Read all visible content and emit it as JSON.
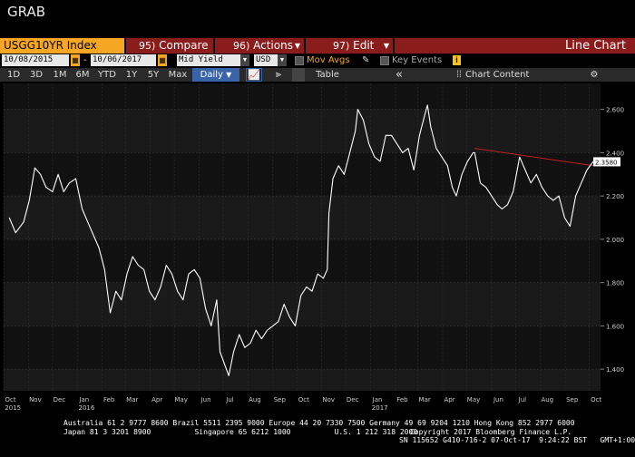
{
  "window": {
    "title": "GRAB"
  },
  "toolbar": {
    "ticker": "USGG10YR Index",
    "compare": {
      "num": "95)",
      "label": "Compare"
    },
    "actions": {
      "num": "96)",
      "label": "Actions"
    },
    "edit": {
      "num": "97)",
      "label": "Edit"
    },
    "view": "Line Chart"
  },
  "params": {
    "start_date": "10/08/2015",
    "dash": "-",
    "end_date": "10/06/2017",
    "field": "Mid Yield",
    "currency": "USD",
    "mov_avgs": "Mov Avgs",
    "key_events": "Key Events",
    "info": "i"
  },
  "timebar": {
    "ranges": [
      "1D",
      "3D",
      "1M",
      "6M",
      "YTD",
      "1Y",
      "5Y",
      "Max"
    ],
    "frequency": "Daily",
    "table": "Table",
    "collapse": "«",
    "chart_content": "Chart Content",
    "settings": "⚙"
  },
  "chart_data": {
    "type": "line",
    "title": "",
    "xlabel": "",
    "ylabel": "",
    "x_ticks": [
      "Oct",
      "Nov",
      "Dec",
      "Jan",
      "Feb",
      "Mar",
      "Apr",
      "May",
      "Jun",
      "Jul",
      "Aug",
      "Sep",
      "Oct",
      "Nov",
      "Dec",
      "Jan",
      "Feb",
      "Mar",
      "Apr",
      "May",
      "Jun",
      "Jul",
      "Aug",
      "Sep",
      "Oct"
    ],
    "x_year_labels": [
      "2015",
      "2016",
      "2017"
    ],
    "y_ticks": [
      "2.600",
      "2.400",
      "2.200",
      "2.000",
      "1.800",
      "1.600",
      "1.400"
    ],
    "ylim": [
      1.3,
      2.72
    ],
    "last_value_label": "2.3580",
    "grid": true,
    "series": [
      {
        "color": "#ffffff",
        "x": [
          "2015-10-08",
          "2015-10-16",
          "2015-10-26",
          "2015-11-02",
          "2015-11-09",
          "2015-11-16",
          "2015-11-23",
          "2015-12-01",
          "2015-12-08",
          "2015-12-15",
          "2015-12-22",
          "2015-12-30",
          "2016-01-07",
          "2016-01-14",
          "2016-01-21",
          "2016-01-28",
          "2016-02-04",
          "2016-02-11",
          "2016-02-18",
          "2016-02-25",
          "2016-03-03",
          "2016-03-10",
          "2016-03-17",
          "2016-03-24",
          "2016-03-31",
          "2016-04-07",
          "2016-04-14",
          "2016-04-21",
          "2016-04-28",
          "2016-05-05",
          "2016-05-12",
          "2016-05-19",
          "2016-05-26",
          "2016-06-02",
          "2016-06-09",
          "2016-06-16",
          "2016-06-23",
          "2016-06-27",
          "2016-07-05",
          "2016-07-08",
          "2016-07-14",
          "2016-07-21",
          "2016-07-28",
          "2016-08-04",
          "2016-08-11",
          "2016-08-18",
          "2016-08-25",
          "2016-09-01",
          "2016-09-08",
          "2016-09-15",
          "2016-09-22",
          "2016-09-29",
          "2016-10-06",
          "2016-10-13",
          "2016-10-20",
          "2016-10-27",
          "2016-11-03",
          "2016-11-08",
          "2016-11-10",
          "2016-11-15",
          "2016-11-22",
          "2016-11-29",
          "2016-12-06",
          "2016-12-13",
          "2016-12-16",
          "2016-12-23",
          "2016-12-30",
          "2017-01-06",
          "2017-01-13",
          "2017-01-20",
          "2017-01-27",
          "2017-02-03",
          "2017-02-10",
          "2017-02-17",
          "2017-02-24",
          "2017-03-03",
          "2017-03-10",
          "2017-03-13",
          "2017-03-17",
          "2017-03-24",
          "2017-03-31",
          "2017-04-07",
          "2017-04-13",
          "2017-04-18",
          "2017-04-25",
          "2017-05-02",
          "2017-05-09",
          "2017-05-11",
          "2017-05-18",
          "2017-05-25",
          "2017-06-01",
          "2017-06-08",
          "2017-06-14",
          "2017-06-21",
          "2017-06-28",
          "2017-07-06",
          "2017-07-13",
          "2017-07-20",
          "2017-07-27",
          "2017-08-03",
          "2017-08-10",
          "2017-08-17",
          "2017-08-24",
          "2017-08-31",
          "2017-09-07",
          "2017-09-14",
          "2017-09-21",
          "2017-09-28",
          "2017-10-06"
        ],
        "values": [
          2.1,
          2.03,
          2.08,
          2.18,
          2.33,
          2.3,
          2.24,
          2.22,
          2.3,
          2.22,
          2.26,
          2.28,
          2.14,
          2.08,
          2.02,
          1.96,
          1.86,
          1.66,
          1.76,
          1.72,
          1.84,
          1.92,
          1.88,
          1.86,
          1.76,
          1.72,
          1.78,
          1.88,
          1.84,
          1.76,
          1.72,
          1.84,
          1.86,
          1.82,
          1.68,
          1.6,
          1.72,
          1.48,
          1.4,
          1.37,
          1.48,
          1.56,
          1.5,
          1.52,
          1.58,
          1.54,
          1.58,
          1.6,
          1.62,
          1.7,
          1.64,
          1.6,
          1.74,
          1.78,
          1.76,
          1.84,
          1.82,
          1.86,
          2.12,
          2.28,
          2.34,
          2.3,
          2.4,
          2.5,
          2.6,
          2.55,
          2.44,
          2.38,
          2.36,
          2.48,
          2.48,
          2.44,
          2.4,
          2.42,
          2.32,
          2.48,
          2.58,
          2.62,
          2.52,
          2.42,
          2.38,
          2.34,
          2.24,
          2.2,
          2.3,
          2.36,
          2.4,
          2.4,
          2.26,
          2.24,
          2.2,
          2.16,
          2.14,
          2.16,
          2.22,
          2.38,
          2.32,
          2.26,
          2.3,
          2.24,
          2.2,
          2.18,
          2.2,
          2.1,
          2.06,
          2.2,
          2.26,
          2.32,
          2.36
        ]
      }
    ],
    "trendline": {
      "color": "#c02020",
      "x": [
        "2017-05-11",
        "2017-10-06"
      ],
      "values": [
        2.42,
        2.34
      ]
    }
  },
  "footer": {
    "line1": "Australia 61 2 9777 8600 Brazil 5511 2395 9000 Europe 44 20 7330 7500 Germany 49 69 9204 1210 Hong Kong 852 2977 6000",
    "line2": "Japan 81 3 3201 8900          Singapore 65 6212 1000          U.S. 1 212 318 2000",
    "copyright": "Copyright 2017 Bloomberg Finance L.P.",
    "sn": "SN 115652 G410-716-2 07-Oct-17  9:24:22 BST   GMT+1:00"
  }
}
